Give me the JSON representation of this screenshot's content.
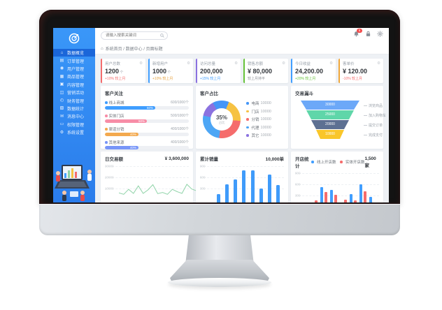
{
  "header": {
    "search_placeholder": "请输入搜索关键词",
    "notification_count": "5"
  },
  "breadcrumb": {
    "home_glyph": "⌂",
    "path": "系统首页 / 数据中心 / 页面标题"
  },
  "sidebar": {
    "items": [
      {
        "label": "数据概览",
        "icon_name": "home-icon",
        "glyph": "⌂",
        "active": true
      },
      {
        "label": "订单管理",
        "icon_name": "orders-icon",
        "glyph": "▤",
        "active": false
      },
      {
        "label": "用户管理",
        "icon_name": "user-icon",
        "glyph": "◉",
        "active": false
      },
      {
        "label": "商品管理",
        "icon_name": "product-icon",
        "glyph": "▦",
        "active": false
      },
      {
        "label": "内容管理",
        "icon_name": "content-icon",
        "glyph": "▣",
        "active": false
      },
      {
        "label": "营销活动",
        "icon_name": "campaign-icon",
        "glyph": "◫",
        "active": false
      },
      {
        "label": "财务管理",
        "icon_name": "finance-icon",
        "glyph": "◴",
        "active": false
      },
      {
        "label": "数据统计",
        "icon_name": "stats-icon",
        "glyph": "▧",
        "active": false
      },
      {
        "label": "消息中心",
        "icon_name": "message-icon",
        "glyph": "✉",
        "active": false
      },
      {
        "label": "权限管理",
        "icon_name": "auth-icon",
        "glyph": "▭",
        "active": false
      },
      {
        "label": "系统设置",
        "icon_name": "settings-icon",
        "glyph": "⚙",
        "active": false
      }
    ]
  },
  "stat_cards": [
    {
      "title": "用户总数",
      "value": "1200",
      "unit": "个",
      "sub": "+10% 较上月",
      "accent": "#f56c6c",
      "sub_color": "#f56c6c"
    },
    {
      "title": "新增用户",
      "value": "1000",
      "unit": "个",
      "sub": "+10% 较上月",
      "accent": "#409eff",
      "sub_color": "#e6a23c"
    },
    {
      "title": "访问总量",
      "value": "200,000",
      "unit": "",
      "sub": "+15% 较上月",
      "accent": "#8b72e0",
      "sub_color": "#409eff"
    },
    {
      "title": "销售总额",
      "value": "¥ 80,000",
      "unit": "",
      "sub": "较上月持平",
      "accent": "#67c23a",
      "sub_color": "#909399"
    },
    {
      "title": "今日收益",
      "value": "24,200.00",
      "unit": "",
      "sub": "+20% 较上月",
      "accent": "#409eff",
      "sub_color": "#67c23a"
    },
    {
      "title": "客单价",
      "value": "¥ 120.00",
      "unit": "",
      "sub": "-10% 较上月",
      "accent": "#f0a73a",
      "sub_color": "#f56c6c"
    }
  ],
  "chart_data": [
    {
      "type": "bar",
      "variant": "horizontal-progress",
      "title": "客户关注",
      "rows": [
        {
          "label": "线上商城",
          "value": "600/1000个",
          "pct": 60,
          "color": "#409eff"
        },
        {
          "label": "实体门店",
          "value": "500/1000个",
          "pct": 50,
          "color": "#f78da7"
        },
        {
          "label": "渠道分销",
          "value": "400/1000个",
          "pct": 40,
          "color": "#f3a94e"
        },
        {
          "label": "其他来源",
          "value": "400/1000个",
          "pct": 40,
          "color": "#7795f8"
        }
      ]
    },
    {
      "type": "pie",
      "variant": "donut",
      "title": "客户占比",
      "center": "35%",
      "center_sub": "占比",
      "start_angle_deg": -28,
      "segments": [
        {
          "label": "电商",
          "value": "10000",
          "pct": 14,
          "color": "#4596f7"
        },
        {
          "label": "门店",
          "value": "10000",
          "pct": 20,
          "color": "#f6c243"
        },
        {
          "label": "分销",
          "value": "10000",
          "pct": 26,
          "color": "#f56c6c"
        },
        {
          "label": "代理",
          "value": "10000",
          "pct": 26,
          "color": "#4da6f5"
        },
        {
          "label": "其它",
          "value": "10000",
          "pct": 14,
          "color": "#8b72e0"
        }
      ],
      "legend_position": "right"
    },
    {
      "type": "pie",
      "variant": "funnel",
      "title": "交易漏斗",
      "stages": [
        {
          "label": "浏览商品",
          "value": "30000",
          "color": "#6ca8f8"
        },
        {
          "label": "加入购物车",
          "value": "25000",
          "color": "#5fd6a9"
        },
        {
          "label": "提交订单",
          "value": "20000",
          "color": "#5d7092"
        },
        {
          "label": "完成支付",
          "value": "10000",
          "color": "#f9c62a"
        }
      ]
    },
    {
      "type": "line",
      "title": "日交易额",
      "total": "¥ 3,600,000",
      "ylim": [
        0,
        30000
      ],
      "y_ticks": [
        "30000",
        "20000",
        "10000"
      ],
      "values": [
        9500,
        8200,
        12500,
        9000,
        15500,
        9000,
        12000,
        16500,
        8800,
        9800,
        8200,
        12500,
        10500,
        9000,
        16800,
        12800,
        11200,
        21000
      ],
      "color": "#8fd3a8",
      "grid": true
    },
    {
      "type": "bar",
      "title": "累计销量",
      "total": "10,000单",
      "ylim": [
        0,
        900
      ],
      "y_ticks": [
        "900",
        "600",
        "300"
      ],
      "values": [
        280,
        520,
        640,
        860,
        860,
        420,
        760,
        500
      ],
      "color": "#3f9bfa",
      "grid": true
    },
    {
      "type": "bar",
      "variant": "grouped",
      "title": "开店统计",
      "total": "1,500家",
      "ylim": [
        0,
        900
      ],
      "y_ticks": [
        "900",
        "600",
        "300"
      ],
      "series": [
        {
          "name": "线上开店数",
          "color": "#409eff",
          "values": [
            150,
            620,
            560,
            200,
            450,
            700,
            380
          ]
        },
        {
          "name": "实体开店数",
          "color": "#f56c6c",
          "values": [
            300,
            500,
            430,
            320,
            300,
            520,
            250
          ]
        }
      ],
      "legend_position": "top",
      "grid": true
    }
  ]
}
